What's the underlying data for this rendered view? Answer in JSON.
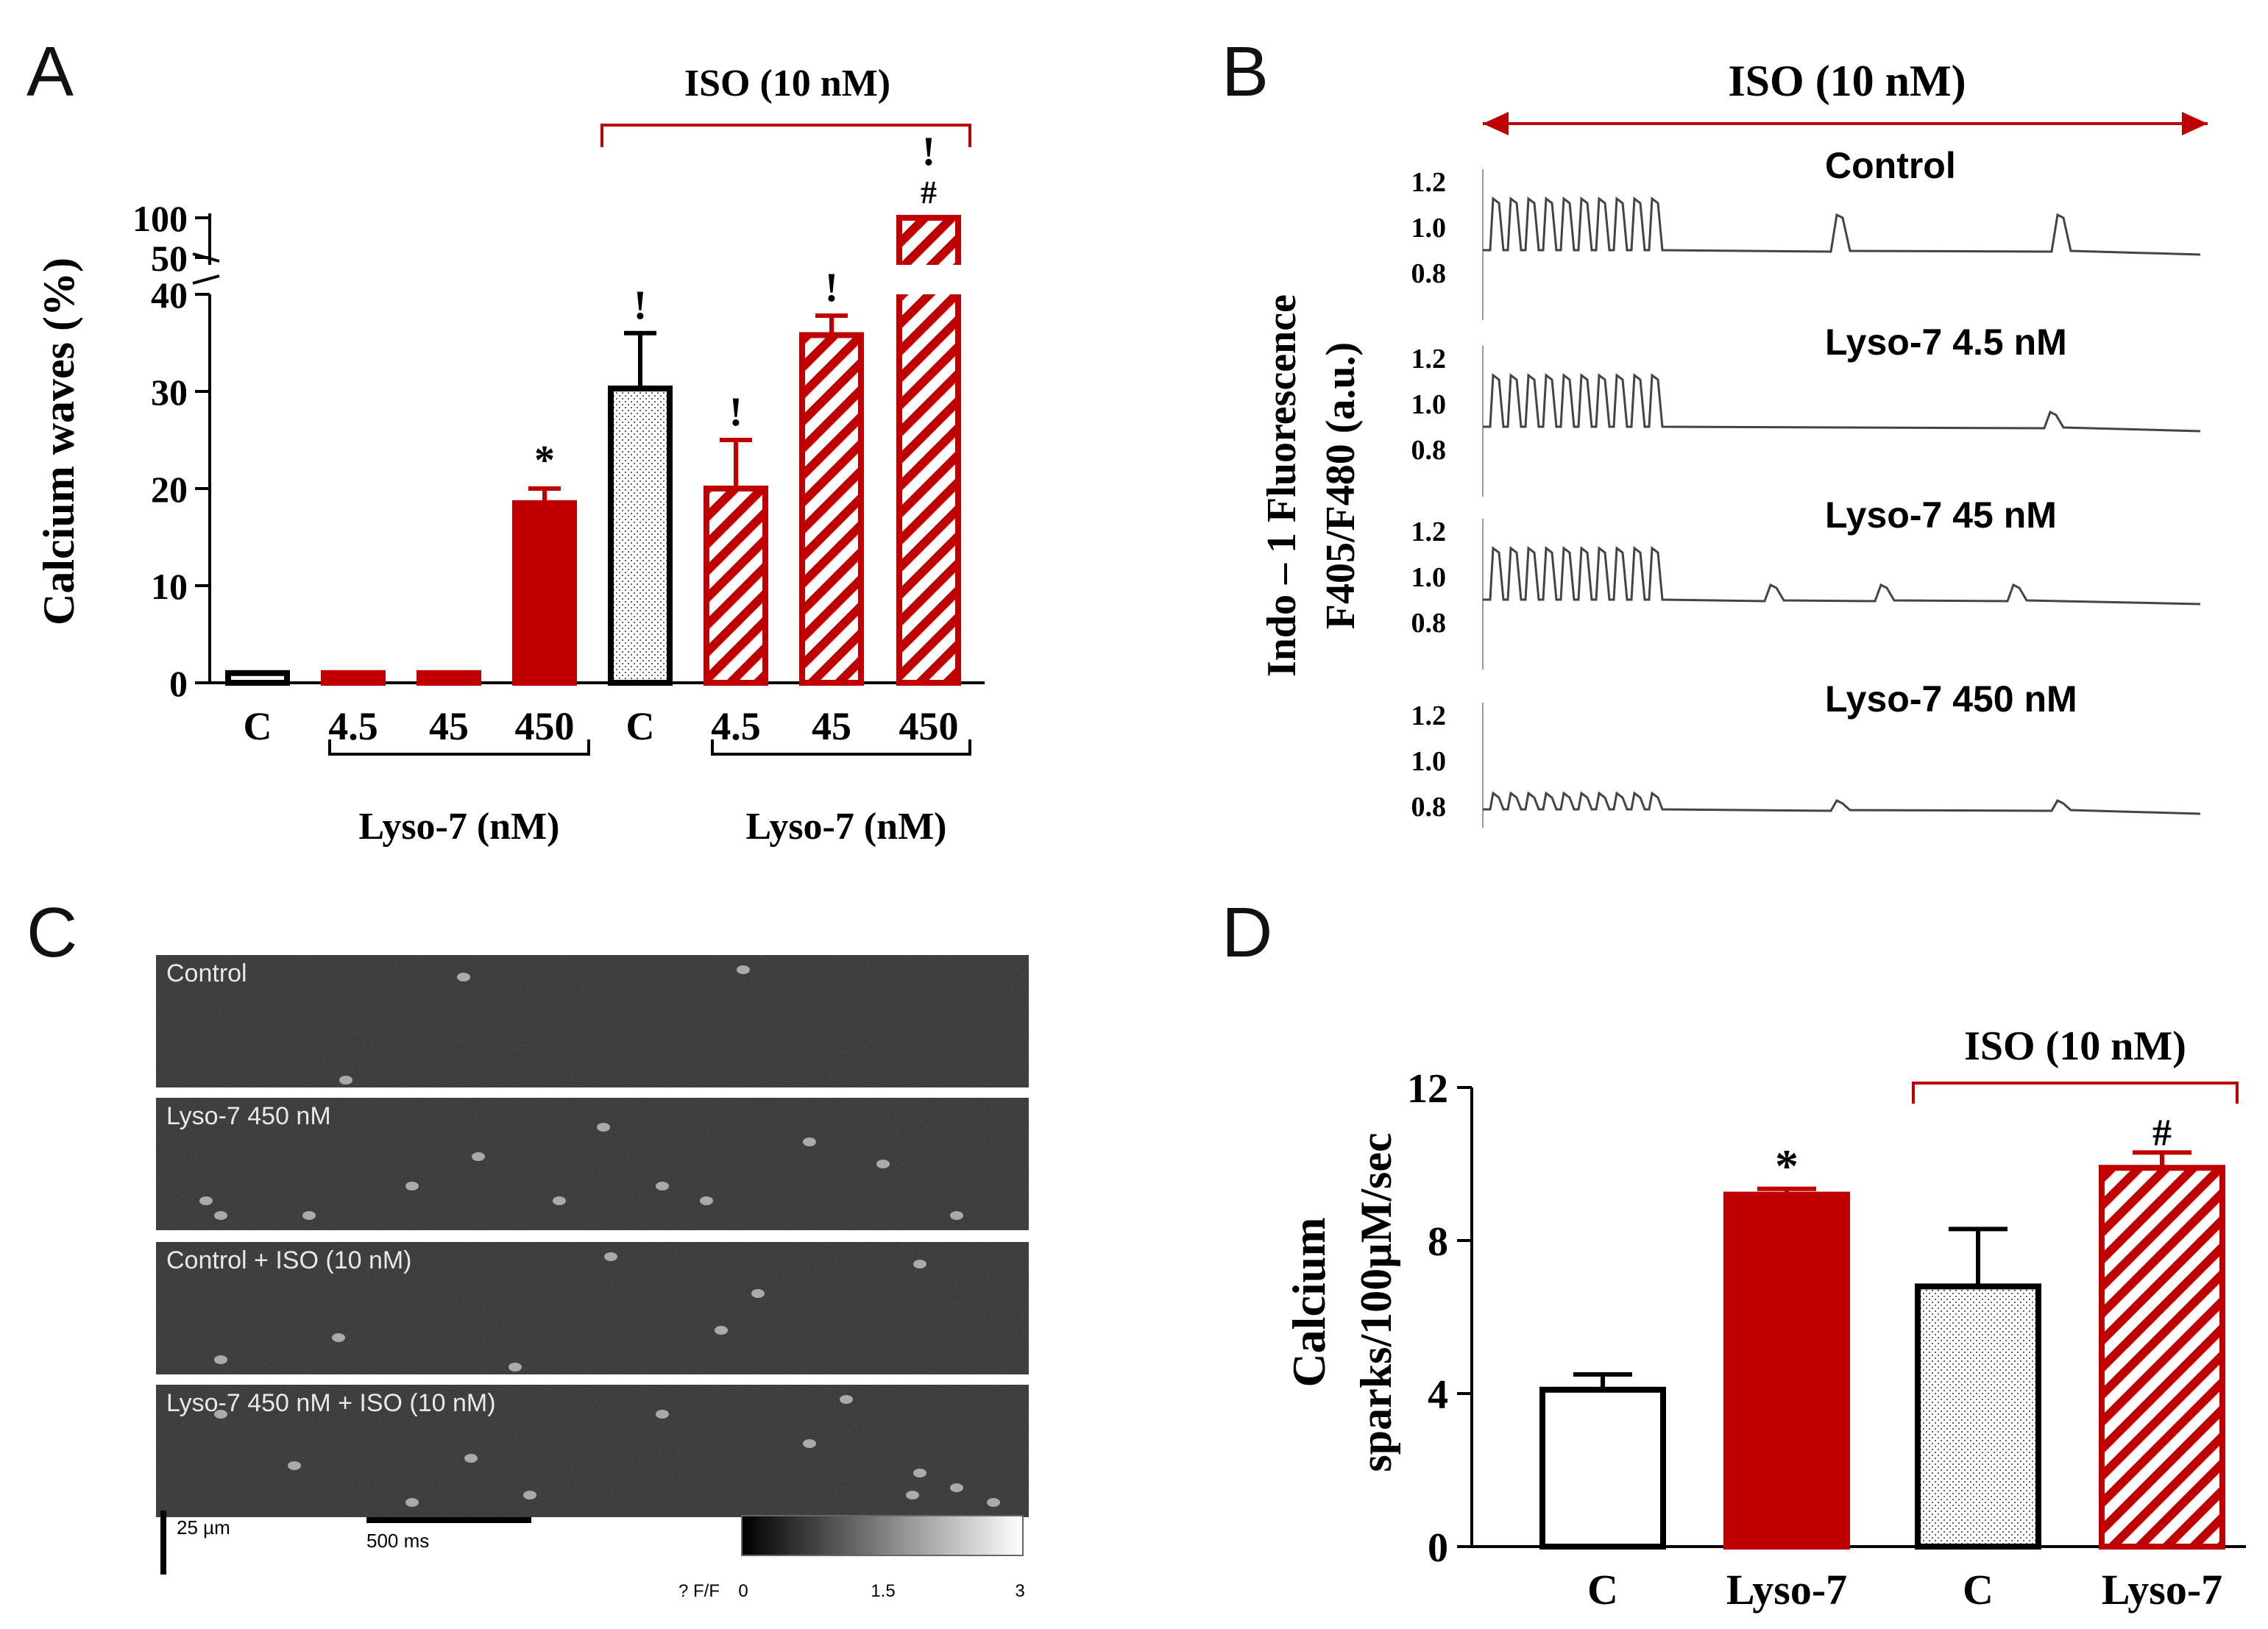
{
  "colors": {
    "red": "#c00000",
    "black": "#000000",
    "gray_trace": "#444444",
    "image_bg": "#2b2b2b",
    "image_label": "#e8e8e8"
  },
  "panels": {
    "a": {
      "letter": "A"
    },
    "b": {
      "letter": "B"
    },
    "c": {
      "letter": "C"
    },
    "d": {
      "letter": "D"
    }
  },
  "chart_data": [
    {
      "id": "A",
      "type": "bar",
      "ylabel": "Calcium waves (%)",
      "y_lower_range": [
        0,
        40
      ],
      "y_upper_range": [
        50,
        100
      ],
      "y_ticks_lower": [
        "0",
        "10",
        "20",
        "30",
        "40"
      ],
      "y_ticks_upper": [
        "50",
        "100"
      ],
      "categories": [
        "C",
        "4.5",
        "45",
        "450",
        "C",
        "4.5",
        "45",
        "450"
      ],
      "values": [
        1,
        1,
        1,
        18.5,
        30.3,
        20,
        35.8,
        100
      ],
      "errors": [
        0,
        0,
        0,
        1.5,
        5.7,
        5,
        2,
        0
      ],
      "fill": [
        "white",
        "red",
        "red",
        "red",
        "dots",
        "hatch",
        "hatch",
        "hatch"
      ],
      "annotations": [
        "",
        "",
        "",
        "*",
        "!",
        "!",
        "!",
        "!\n#"
      ],
      "group_labels": [
        "Lyso-7 (nM)",
        "Lyso-7 (nM)"
      ],
      "treatment_label": "ISO (10 nM)"
    },
    {
      "id": "B",
      "type": "line",
      "title": "ISO (10 nM)",
      "ylabel_line1": "Indo – 1 Fluorescence",
      "ylabel_line2": "F405/F480 (a.u.)",
      "traces": [
        {
          "name": "Control",
          "ticks": [
            "1.2",
            "1.0",
            "0.8"
          ],
          "pacing_beats": 10,
          "spontaneous_events": 2,
          "event_amplitude": "large"
        },
        {
          "name": "Lyso-7 4.5 nM",
          "ticks": [
            "1.2",
            "1.0",
            "0.8"
          ],
          "pacing_beats": 10,
          "spontaneous_events": 1,
          "event_amplitude": "small"
        },
        {
          "name": "Lyso-7  45 nM",
          "ticks": [
            "1.2",
            "1.0",
            "0.8"
          ],
          "pacing_beats": 10,
          "spontaneous_events": 3,
          "event_amplitude": "small"
        },
        {
          "name": "Lyso-7  450 nM",
          "ticks": [
            "1.2",
            "1.0",
            "0.8"
          ],
          "pacing_beats": 10,
          "spontaneous_events": 2,
          "event_amplitude": "tiny"
        }
      ]
    },
    {
      "id": "D",
      "type": "bar",
      "ylabel_line1": "Calcium",
      "ylabel_line2": "sparks/100µM/sec",
      "ylim": [
        0,
        12
      ],
      "y_ticks": [
        "0",
        "4",
        "8",
        "12"
      ],
      "categories": [
        "C",
        "Lyso-7",
        "C",
        "Lyso-7"
      ],
      "values": [
        4.1,
        9.2,
        6.8,
        9.9
      ],
      "errors": [
        0.4,
        0.15,
        1.5,
        0.4
      ],
      "fill": [
        "white",
        "red",
        "dots",
        "hatch"
      ],
      "annotations": [
        "",
        "*",
        "",
        "#"
      ],
      "treatment_label": "ISO (10 nM)"
    }
  ],
  "panel_c": {
    "images": [
      {
        "label": "Control",
        "spark_count": 3
      },
      {
        "label": "Lyso-7 450 nM",
        "spark_count": 12
      },
      {
        "label": "Control + ISO (10  nM)",
        "spark_count": 7
      },
      {
        "label": "Lyso-7 450 nM + ISO (10 nM)",
        "spark_count": 12
      }
    ],
    "scale_y": "25 µm",
    "scale_x": "500 ms",
    "colorbar_label": "? F/F",
    "colorbar_ticks": [
      "0",
      "1.5",
      "3"
    ]
  }
}
